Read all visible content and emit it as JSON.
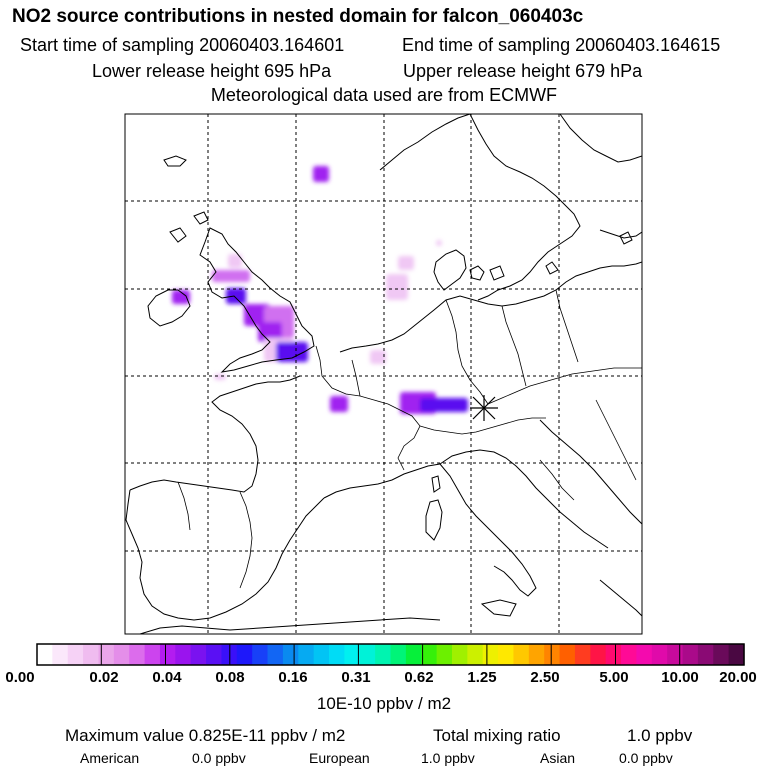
{
  "header": {
    "title": "NO2 source contributions in nested domain for falcon_060403c",
    "start_time": "Start time of sampling 20060403.164601",
    "end_time": "End time of sampling 20060403.164615",
    "lower_height": "Lower release height  695 hPa",
    "upper_height": "Upper release height  679 hPa",
    "met_data": "Meteorological data used are from ECMWF"
  },
  "colorbar": {
    "tick_labels": [
      "0.00",
      "0.02",
      "0.04",
      "0.08",
      "0.16",
      "0.31",
      "0.62",
      "1.25",
      "2.50",
      "5.00",
      "10.00",
      "20.00"
    ],
    "unit": "10E-10 ppbv / m2",
    "colors": [
      "#ffffff",
      "#fbe8fb",
      "#f6d2f6",
      "#f0bcf0",
      "#eaa6ea",
      "#e48ee9",
      "#dc6cec",
      "#cc44ee",
      "#b31cf0",
      "#9a14ee",
      "#7a12f0",
      "#5a10f4",
      "#3a10f8",
      "#1e18fa",
      "#1840f8",
      "#1266f4",
      "#0a8af0",
      "#06aaf2",
      "#02c4f4",
      "#00dcf6",
      "#00f0f0",
      "#00f2d8",
      "#00f4b0",
      "#00f478",
      "#06f03a",
      "#36f00a",
      "#6cf000",
      "#a0f000",
      "#ccf000",
      "#eef000",
      "#ffe800",
      "#ffc800",
      "#ffa400",
      "#ff8400",
      "#ff6000",
      "#ff3c20",
      "#ff1446",
      "#ff0a70",
      "#ff0a96",
      "#f40aae",
      "#e00aaa",
      "#c80a9c",
      "#aa0a8a",
      "#8a0a74",
      "#6a0a5a",
      "#4a0842"
    ]
  },
  "summary": {
    "max_label": "Maximum value  0.825E-11 ppbv / m2",
    "total_label": "Total mixing ratio",
    "total_value": "1.0 ppbv",
    "american_label": "American",
    "american_value": "0.0 ppbv",
    "european_label": "European",
    "european_value": "1.0 ppbv",
    "asian_label": "Asian",
    "asian_value": "0.0 ppbv"
  },
  "map": {
    "plume_colors": {
      "light": "#f0c8f4",
      "medium": "#d070f0",
      "strong": "#a020f0",
      "deep": "#5a10f0"
    },
    "release_marker": "asterisk"
  }
}
